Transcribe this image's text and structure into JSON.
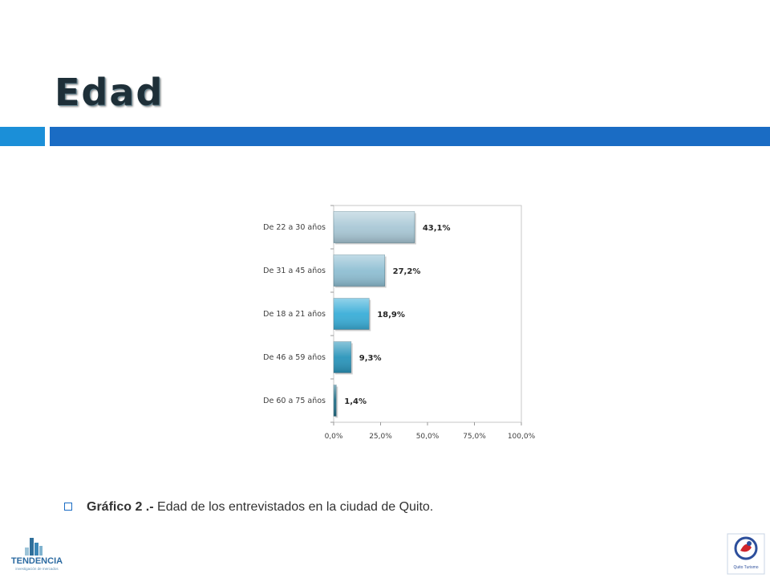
{
  "slide": {
    "title": "Edad",
    "caption_bold": "Gráfico 2 .-",
    "caption_text": " Edad de los entrevistados en la ciudad de Quito.",
    "logo_left_text": "TENDENCIA",
    "logo_left_sub": "investigación de mercados",
    "logo_right_text": "Quito Turismo"
  },
  "chart_data": {
    "type": "bar",
    "orientation": "horizontal",
    "categories": [
      "De 22 a 30 años",
      "De 31 a 45 años",
      "De 18 a 21 años",
      "De 46 a 59 años",
      "De 60 a 75 años"
    ],
    "values": [
      43.1,
      27.2,
      18.9,
      9.3,
      1.4
    ],
    "data_labels": [
      "43,1%",
      "27,2%",
      "18,9%",
      "9,3%",
      "1,4%"
    ],
    "xlim": [
      0,
      100
    ],
    "xticks": [
      0,
      25,
      50,
      75,
      100
    ],
    "xtick_labels": [
      "0,0%",
      "25,0%",
      "50,0%",
      "75,0%",
      "100,0%"
    ],
    "bar_colors": [
      "#a9c8d6",
      "#8fbfd3",
      "#3aaed8",
      "#2a95bb",
      "#1f6d86"
    ]
  }
}
